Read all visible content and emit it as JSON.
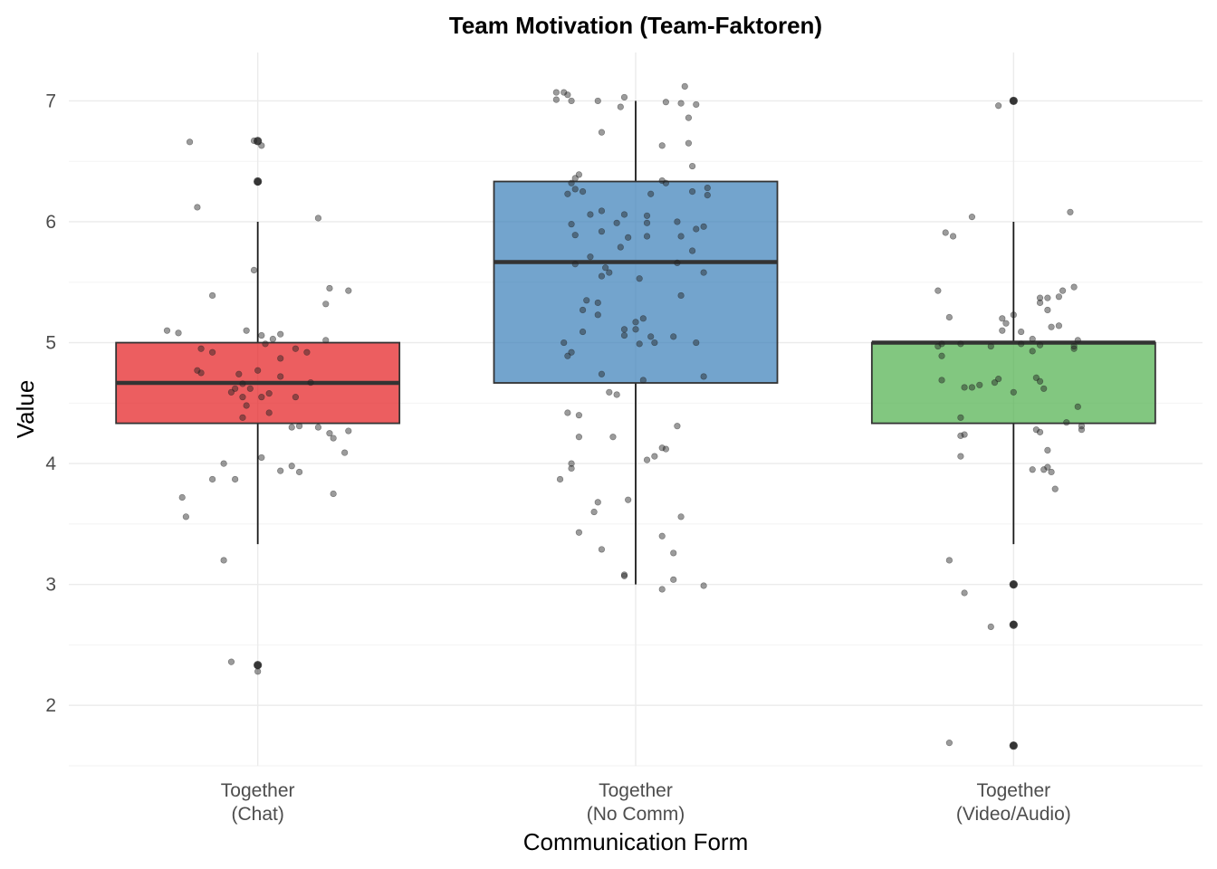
{
  "chart_data": {
    "type": "boxplot",
    "title": "Team Motivation (Team-Faktoren)",
    "xlabel": "Communication Form",
    "ylabel": "Value",
    "ylim": [
      1.5,
      7.4
    ],
    "yticks": [
      2,
      3,
      4,
      5,
      6,
      7
    ],
    "grid": true,
    "legend": "none",
    "categories": [
      {
        "line1": "Together",
        "line2": "(Chat)",
        "color": "#e41a1c"
      },
      {
        "line1": "Together",
        "line2": "(No Comm)",
        "color": "#377eb8"
      },
      {
        "line1": "Together",
        "line2": "(Video/Audio)",
        "color": "#4daf4a"
      }
    ],
    "boxes": [
      {
        "q1": 4.333,
        "median": 4.667,
        "q3": 5.0,
        "whisker_low": 3.333,
        "whisker_high": 6.0,
        "outliers": [
          6.667,
          6.333,
          2.333
        ]
      },
      {
        "q1": 4.667,
        "median": 5.667,
        "q3": 6.333,
        "whisker_low": 3.0,
        "whisker_high": 7.0,
        "outliers": []
      },
      {
        "q1": 4.333,
        "median": 5.0,
        "q3": 5.0,
        "whisker_low": 3.333,
        "whisker_high": 6.0,
        "outliers": [
          7.0,
          3.0,
          2.667,
          1.667
        ]
      }
    ],
    "points": [
      [
        {
          "dx": -0.18,
          "y": 6.66
        },
        {
          "dx": -0.01,
          "y": 6.67
        },
        {
          "dx": 0.01,
          "y": 6.63
        },
        {
          "dx": 0.0,
          "y": 6.33
        },
        {
          "dx": -0.16,
          "y": 6.12
        },
        {
          "dx": 0.16,
          "y": 6.03
        },
        {
          "dx": -0.01,
          "y": 5.6
        },
        {
          "dx": -0.12,
          "y": 5.39
        },
        {
          "dx": 0.19,
          "y": 5.45
        },
        {
          "dx": 0.24,
          "y": 5.43
        },
        {
          "dx": 0.18,
          "y": 5.32
        },
        {
          "dx": -0.24,
          "y": 5.1
        },
        {
          "dx": -0.21,
          "y": 5.08
        },
        {
          "dx": -0.03,
          "y": 5.1
        },
        {
          "dx": 0.01,
          "y": 5.06
        },
        {
          "dx": 0.06,
          "y": 5.07
        },
        {
          "dx": 0.04,
          "y": 5.03
        },
        {
          "dx": 0.18,
          "y": 5.02
        },
        {
          "dx": 0.02,
          "y": 4.99
        },
        {
          "dx": -0.15,
          "y": 4.95
        },
        {
          "dx": -0.12,
          "y": 4.92
        },
        {
          "dx": 0.1,
          "y": 4.95
        },
        {
          "dx": 0.13,
          "y": 4.92
        },
        {
          "dx": 0.06,
          "y": 4.87
        },
        {
          "dx": -0.16,
          "y": 4.77
        },
        {
          "dx": -0.15,
          "y": 4.75
        },
        {
          "dx": -0.05,
          "y": 4.74
        },
        {
          "dx": 0.0,
          "y": 4.77
        },
        {
          "dx": 0.06,
          "y": 4.72
        },
        {
          "dx": 0.14,
          "y": 4.67
        },
        {
          "dx": -0.04,
          "y": 4.66
        },
        {
          "dx": -0.06,
          "y": 4.62
        },
        {
          "dx": -0.07,
          "y": 4.59
        },
        {
          "dx": -0.04,
          "y": 4.55
        },
        {
          "dx": 0.01,
          "y": 4.55
        },
        {
          "dx": 0.1,
          "y": 4.55
        },
        {
          "dx": -0.03,
          "y": 4.48
        },
        {
          "dx": -0.02,
          "y": 4.62
        },
        {
          "dx": 0.03,
          "y": 4.58
        },
        {
          "dx": -0.04,
          "y": 4.38
        },
        {
          "dx": 0.03,
          "y": 4.42
        },
        {
          "dx": 0.09,
          "y": 4.3
        },
        {
          "dx": 0.11,
          "y": 4.31
        },
        {
          "dx": 0.16,
          "y": 4.3
        },
        {
          "dx": 0.19,
          "y": 4.25
        },
        {
          "dx": 0.2,
          "y": 4.21
        },
        {
          "dx": 0.24,
          "y": 4.27
        },
        {
          "dx": 0.23,
          "y": 4.09
        },
        {
          "dx": 0.01,
          "y": 4.05
        },
        {
          "dx": -0.09,
          "y": 4.0
        },
        {
          "dx": 0.06,
          "y": 3.94
        },
        {
          "dx": 0.09,
          "y": 3.98
        },
        {
          "dx": 0.11,
          "y": 3.93
        },
        {
          "dx": -0.12,
          "y": 3.87
        },
        {
          "dx": -0.06,
          "y": 3.87
        },
        {
          "dx": 0.2,
          "y": 3.75
        },
        {
          "dx": -0.2,
          "y": 3.72
        },
        {
          "dx": -0.19,
          "y": 3.56
        },
        {
          "dx": -0.09,
          "y": 3.2
        },
        {
          "dx": -0.07,
          "y": 2.36
        },
        {
          "dx": 0.0,
          "y": 2.33
        },
        {
          "dx": 0.0,
          "y": 2.28
        }
      ],
      [
        {
          "dx": -0.21,
          "y": 7.07
        },
        {
          "dx": -0.19,
          "y": 7.07
        },
        {
          "dx": -0.18,
          "y": 7.05
        },
        {
          "dx": -0.21,
          "y": 7.01
        },
        {
          "dx": -0.17,
          "y": 7.0
        },
        {
          "dx": -0.1,
          "y": 7.0
        },
        {
          "dx": -0.03,
          "y": 7.03
        },
        {
          "dx": 0.08,
          "y": 6.99
        },
        {
          "dx": 0.12,
          "y": 6.98
        },
        {
          "dx": -0.04,
          "y": 6.95
        },
        {
          "dx": 0.14,
          "y": 6.86
        },
        {
          "dx": 0.13,
          "y": 7.12
        },
        {
          "dx": 0.16,
          "y": 6.97
        },
        {
          "dx": -0.09,
          "y": 6.74
        },
        {
          "dx": 0.07,
          "y": 6.63
        },
        {
          "dx": 0.14,
          "y": 6.65
        },
        {
          "dx": 0.15,
          "y": 6.46
        },
        {
          "dx": -0.15,
          "y": 6.39
        },
        {
          "dx": -0.16,
          "y": 6.36
        },
        {
          "dx": -0.17,
          "y": 6.32
        },
        {
          "dx": -0.16,
          "y": 6.27
        },
        {
          "dx": -0.14,
          "y": 6.25
        },
        {
          "dx": -0.18,
          "y": 6.23
        },
        {
          "dx": 0.07,
          "y": 6.34
        },
        {
          "dx": 0.08,
          "y": 6.32
        },
        {
          "dx": 0.15,
          "y": 6.25
        },
        {
          "dx": 0.19,
          "y": 6.28
        },
        {
          "dx": 0.19,
          "y": 6.22
        },
        {
          "dx": 0.04,
          "y": 6.23
        },
        {
          "dx": -0.09,
          "y": 6.09
        },
        {
          "dx": -0.12,
          "y": 6.06
        },
        {
          "dx": -0.03,
          "y": 6.06
        },
        {
          "dx": 0.03,
          "y": 6.05
        },
        {
          "dx": -0.17,
          "y": 5.98
        },
        {
          "dx": -0.05,
          "y": 5.99
        },
        {
          "dx": 0.03,
          "y": 5.99
        },
        {
          "dx": 0.11,
          "y": 6.0
        },
        {
          "dx": 0.16,
          "y": 5.94
        },
        {
          "dx": 0.18,
          "y": 5.96
        },
        {
          "dx": -0.16,
          "y": 5.89
        },
        {
          "dx": -0.09,
          "y": 5.92
        },
        {
          "dx": 0.12,
          "y": 5.88
        },
        {
          "dx": -0.02,
          "y": 5.87
        },
        {
          "dx": 0.03,
          "y": 5.88
        },
        {
          "dx": -0.04,
          "y": 5.79
        },
        {
          "dx": 0.15,
          "y": 5.76
        },
        {
          "dx": -0.12,
          "y": 5.71
        },
        {
          "dx": -0.16,
          "y": 5.65
        },
        {
          "dx": 0.11,
          "y": 5.66
        },
        {
          "dx": -0.08,
          "y": 5.62
        },
        {
          "dx": -0.09,
          "y": 5.55
        },
        {
          "dx": -0.07,
          "y": 5.58
        },
        {
          "dx": 0.01,
          "y": 5.53
        },
        {
          "dx": 0.18,
          "y": 5.58
        },
        {
          "dx": -0.13,
          "y": 5.35
        },
        {
          "dx": -0.1,
          "y": 5.33
        },
        {
          "dx": 0.12,
          "y": 5.39
        },
        {
          "dx": -0.14,
          "y": 5.27
        },
        {
          "dx": -0.1,
          "y": 5.23
        },
        {
          "dx": 0.02,
          "y": 5.2
        },
        {
          "dx": 0.0,
          "y": 5.17
        },
        {
          "dx": -0.03,
          "y": 5.11
        },
        {
          "dx": 0.0,
          "y": 5.11
        },
        {
          "dx": -0.14,
          "y": 5.09
        },
        {
          "dx": -0.03,
          "y": 5.06
        },
        {
          "dx": 0.04,
          "y": 5.05
        },
        {
          "dx": 0.1,
          "y": 5.05
        },
        {
          "dx": -0.19,
          "y": 5.0
        },
        {
          "dx": 0.01,
          "y": 4.99
        },
        {
          "dx": 0.05,
          "y": 5.0
        },
        {
          "dx": 0.16,
          "y": 5.0
        },
        {
          "dx": -0.17,
          "y": 4.92
        },
        {
          "dx": -0.18,
          "y": 4.89
        },
        {
          "dx": -0.09,
          "y": 4.74
        },
        {
          "dx": 0.02,
          "y": 4.69
        },
        {
          "dx": 0.18,
          "y": 4.72
        },
        {
          "dx": -0.07,
          "y": 4.59
        },
        {
          "dx": -0.05,
          "y": 4.57
        },
        {
          "dx": -0.18,
          "y": 4.42
        },
        {
          "dx": -0.15,
          "y": 4.4
        },
        {
          "dx": 0.11,
          "y": 4.31
        },
        {
          "dx": -0.15,
          "y": 4.22
        },
        {
          "dx": -0.06,
          "y": 4.22
        },
        {
          "dx": 0.07,
          "y": 4.13
        },
        {
          "dx": 0.08,
          "y": 4.12
        },
        {
          "dx": 0.05,
          "y": 4.06
        },
        {
          "dx": 0.03,
          "y": 4.03
        },
        {
          "dx": -0.17,
          "y": 4.0
        },
        {
          "dx": -0.17,
          "y": 3.96
        },
        {
          "dx": -0.2,
          "y": 3.87
        },
        {
          "dx": -0.1,
          "y": 3.68
        },
        {
          "dx": -0.02,
          "y": 3.7
        },
        {
          "dx": -0.11,
          "y": 3.6
        },
        {
          "dx": 0.12,
          "y": 3.56
        },
        {
          "dx": -0.15,
          "y": 3.43
        },
        {
          "dx": 0.07,
          "y": 3.4
        },
        {
          "dx": -0.09,
          "y": 3.29
        },
        {
          "dx": 0.1,
          "y": 3.26
        },
        {
          "dx": -0.03,
          "y": 3.08
        },
        {
          "dx": -0.03,
          "y": 3.07
        },
        {
          "dx": 0.1,
          "y": 3.04
        },
        {
          "dx": 0.18,
          "y": 2.99
        },
        {
          "dx": 0.07,
          "y": 2.96
        }
      ],
      [
        {
          "dx": 0.0,
          "y": 7.0
        },
        {
          "dx": -0.04,
          "y": 6.96
        },
        {
          "dx": 0.15,
          "y": 6.08
        },
        {
          "dx": -0.11,
          "y": 6.04
        },
        {
          "dx": -0.18,
          "y": 5.91
        },
        {
          "dx": -0.16,
          "y": 5.88
        },
        {
          "dx": 0.16,
          "y": 5.46
        },
        {
          "dx": 0.13,
          "y": 5.43
        },
        {
          "dx": -0.2,
          "y": 5.43
        },
        {
          "dx": 0.12,
          "y": 5.38
        },
        {
          "dx": 0.07,
          "y": 5.37
        },
        {
          "dx": 0.09,
          "y": 5.37
        },
        {
          "dx": 0.07,
          "y": 5.33
        },
        {
          "dx": 0.09,
          "y": 5.27
        },
        {
          "dx": -0.17,
          "y": 5.21
        },
        {
          "dx": 0.0,
          "y": 5.23
        },
        {
          "dx": -0.03,
          "y": 5.2
        },
        {
          "dx": -0.02,
          "y": 5.16
        },
        {
          "dx": 0.1,
          "y": 5.13
        },
        {
          "dx": 0.12,
          "y": 5.14
        },
        {
          "dx": -0.03,
          "y": 5.1
        },
        {
          "dx": 0.02,
          "y": 5.09
        },
        {
          "dx": -0.2,
          "y": 4.97
        },
        {
          "dx": -0.19,
          "y": 4.99
        },
        {
          "dx": -0.14,
          "y": 4.99
        },
        {
          "dx": -0.06,
          "y": 4.97
        },
        {
          "dx": 0.02,
          "y": 4.99
        },
        {
          "dx": 0.07,
          "y": 4.98
        },
        {
          "dx": 0.16,
          "y": 4.97
        },
        {
          "dx": 0.17,
          "y": 5.02
        },
        {
          "dx": 0.05,
          "y": 5.03
        },
        {
          "dx": -0.19,
          "y": 4.89
        },
        {
          "dx": 0.05,
          "y": 4.93
        },
        {
          "dx": 0.16,
          "y": 4.95
        },
        {
          "dx": -0.04,
          "y": 4.7
        },
        {
          "dx": -0.05,
          "y": 4.67
        },
        {
          "dx": 0.06,
          "y": 4.71
        },
        {
          "dx": 0.07,
          "y": 4.68
        },
        {
          "dx": -0.19,
          "y": 4.69
        },
        {
          "dx": -0.13,
          "y": 4.63
        },
        {
          "dx": -0.11,
          "y": 4.63
        },
        {
          "dx": -0.09,
          "y": 4.65
        },
        {
          "dx": -0.0,
          "y": 4.59
        },
        {
          "dx": 0.08,
          "y": 4.62
        },
        {
          "dx": 0.17,
          "y": 4.47
        },
        {
          "dx": -0.14,
          "y": 4.38
        },
        {
          "dx": 0.14,
          "y": 4.34
        },
        {
          "dx": 0.18,
          "y": 4.31
        },
        {
          "dx": 0.18,
          "y": 4.28
        },
        {
          "dx": 0.06,
          "y": 4.28
        },
        {
          "dx": 0.07,
          "y": 4.26
        },
        {
          "dx": -0.13,
          "y": 4.24
        },
        {
          "dx": -0.14,
          "y": 4.23
        },
        {
          "dx": 0.09,
          "y": 4.11
        },
        {
          "dx": -0.14,
          "y": 4.06
        },
        {
          "dx": 0.09,
          "y": 3.97
        },
        {
          "dx": 0.08,
          "y": 3.95
        },
        {
          "dx": 0.1,
          "y": 3.93
        },
        {
          "dx": 0.05,
          "y": 3.95
        },
        {
          "dx": 0.11,
          "y": 3.79
        },
        {
          "dx": -0.17,
          "y": 3.2
        },
        {
          "dx": 0.0,
          "y": 3.0
        },
        {
          "dx": -0.13,
          "y": 2.93
        },
        {
          "dx": -0.06,
          "y": 2.65
        },
        {
          "dx": 0.0,
          "y": 2.67
        },
        {
          "dx": -0.17,
          "y": 1.69
        },
        {
          "dx": 0.0,
          "y": 1.67
        }
      ]
    ]
  }
}
